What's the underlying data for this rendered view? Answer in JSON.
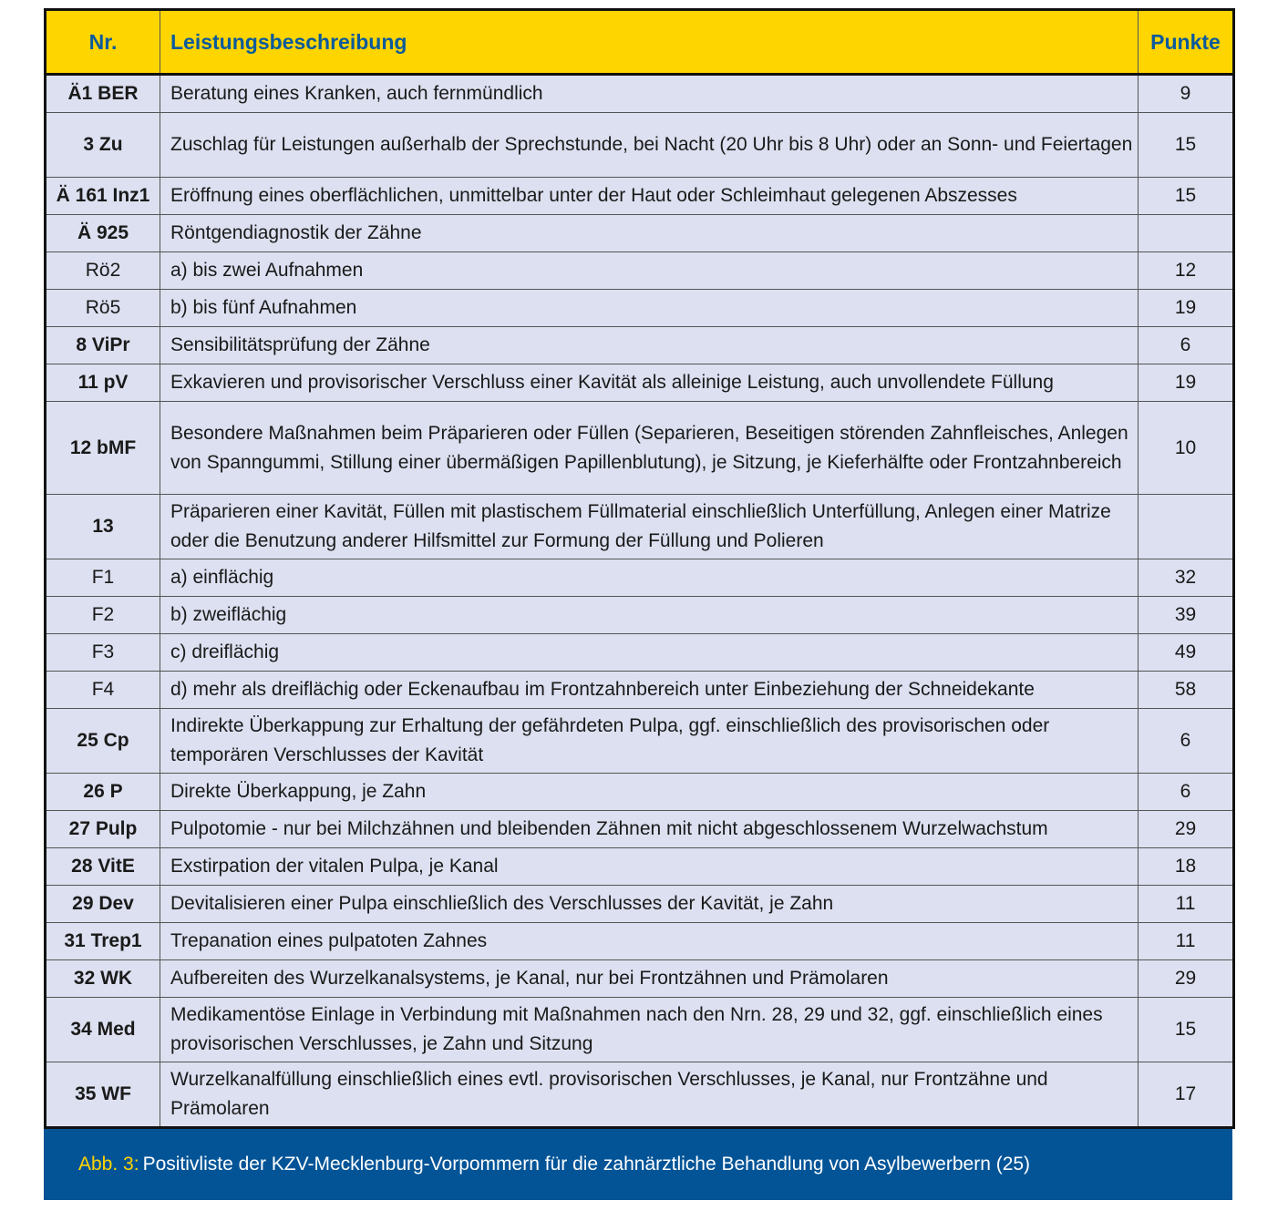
{
  "header": {
    "nr": "Nr.",
    "desc": "Leistungsbeschreibung",
    "points": "Punkte"
  },
  "rows": [
    {
      "nr": "Ä1 BER",
      "bold": true,
      "lines": 1,
      "desc": "Beratung eines Kranken, auch fernmündlich",
      "points": "9"
    },
    {
      "nr": "3 Zu",
      "bold": true,
      "lines": 2,
      "desc": "Zuschlag für Leistungen außerhalb der Sprechstunde, bei Nacht (20 Uhr bis 8 Uhr) oder an Sonn- und Feiertagen",
      "points": "15"
    },
    {
      "nr": "Ä 161 Inz1",
      "bold": true,
      "lines": 1,
      "desc": "Eröffnung eines oberflächlichen, unmittelbar unter der Haut oder Schleimhaut gelegenen Abszesses",
      "points": "15"
    },
    {
      "nr": "Ä 925",
      "bold": true,
      "lines": 1,
      "desc": "Röntgendiagnostik der Zähne",
      "points": ""
    },
    {
      "nr": "Rö2",
      "bold": false,
      "lines": 1,
      "desc": "a) bis zwei Aufnahmen",
      "points": "12"
    },
    {
      "nr": "Rö5",
      "bold": false,
      "lines": 1,
      "desc": "b) bis fünf Aufnahmen",
      "points": "19"
    },
    {
      "nr": "8 ViPr",
      "bold": true,
      "lines": 1,
      "desc": "Sensibilitätsprüfung der Zähne",
      "points": "6"
    },
    {
      "nr": "11 pV",
      "bold": true,
      "lines": 1,
      "desc": "Exkavieren und provisorischer Verschluss einer Kavität als alleinige Leistung, auch unvollendete Füllung",
      "points": "19"
    },
    {
      "nr": "12 bMF",
      "bold": true,
      "lines": 3,
      "desc": "Besondere Maßnahmen beim Präparieren oder Füllen (Separieren, Beseitigen störenden Zahnfleisches, Anlegen von Spanngummi, Stillung einer übermäßigen Papillenblutung), je Sitzung, je Kieferhälfte oder Frontzahnbereich",
      "points": "10"
    },
    {
      "nr": "13",
      "bold": true,
      "lines": 2,
      "desc": "Präparieren einer Kavität, Füllen mit plastischem Füllmaterial einschließlich  Unterfüllung, Anlegen einer Matrize oder die Benutzung anderer Hilfsmittel zur Formung der Füllung und Polieren",
      "points": ""
    },
    {
      "nr": "F1",
      "bold": false,
      "lines": 1,
      "desc": "a) einflächig",
      "points": "32"
    },
    {
      "nr": "F2",
      "bold": false,
      "lines": 1,
      "desc": "b) zweiflächig",
      "points": "39"
    },
    {
      "nr": "F3",
      "bold": false,
      "lines": 1,
      "desc": "c) dreiflächig",
      "points": "49"
    },
    {
      "nr": "F4",
      "bold": false,
      "lines": 1,
      "desc": "d) mehr als dreiflächig oder Eckenaufbau im Frontzahnbereich unter  Einbeziehung der Schneidekante",
      "points": "58"
    },
    {
      "nr": "25 Cp",
      "bold": true,
      "lines": 2,
      "desc": "Indirekte Überkappung zur Erhaltung der gefährdeten Pulpa, ggf. einschließlich des provisorischen oder temporären Verschlusses der Kavität",
      "points": "6"
    },
    {
      "nr": "26 P",
      "bold": true,
      "lines": 1,
      "desc": "Direkte Überkappung, je Zahn",
      "points": "6"
    },
    {
      "nr": "27 Pulp",
      "bold": true,
      "lines": 1,
      "desc": "Pulpotomie - nur bei Milchzähnen und bleibenden Zähnen mit nicht abgeschlossenem Wurzelwachstum",
      "points": "29"
    },
    {
      "nr": "28 VitE",
      "bold": true,
      "lines": 1,
      "desc": "Exstirpation der vitalen Pulpa, je Kanal",
      "points": "18"
    },
    {
      "nr": "29 Dev",
      "bold": true,
      "lines": 1,
      "desc": "Devitalisieren einer Pulpa einschließlich des Verschlusses der Kavität, je Zahn",
      "points": "11"
    },
    {
      "nr": "31 Trep1",
      "bold": true,
      "lines": 1,
      "desc": "Trepanation eines pulpatoten Zahnes",
      "points": "11"
    },
    {
      "nr": "32 WK",
      "bold": true,
      "lines": 1,
      "desc": "Aufbereiten des Wurzelkanalsystems, je Kanal, nur bei Frontzähnen und Prämolaren",
      "points": "29"
    },
    {
      "nr": "34 Med",
      "bold": true,
      "lines": 2,
      "desc": "Medikamentöse Einlage in Verbindung mit Maßnahmen nach den Nrn. 28, 29 und 32, ggf. einschließlich eines provisorischen Verschlusses, je Zahn und Sitzung",
      "points": "15"
    },
    {
      "nr": "35 WF",
      "bold": true,
      "lines": 2,
      "desc": "Wurzelkanalfüllung einschließlich eines evtl. provisorischen Verschlusses, je  Kanal, nur Frontzähne und Prämolaren",
      "points": "17"
    }
  ],
  "caption": {
    "label": "Abb. 3:",
    "text": "Positivliste der KZV-Mecklenburg-Vorpommern für die zahnärztliche Behandlung von Asylbewerbern (25)"
  },
  "colors": {
    "header_bg": "#ffd500",
    "header_text": "#0a5a9c",
    "row_bg": "#dce0f0",
    "caption_bg": "#035497",
    "caption_label": "#ffd500"
  }
}
